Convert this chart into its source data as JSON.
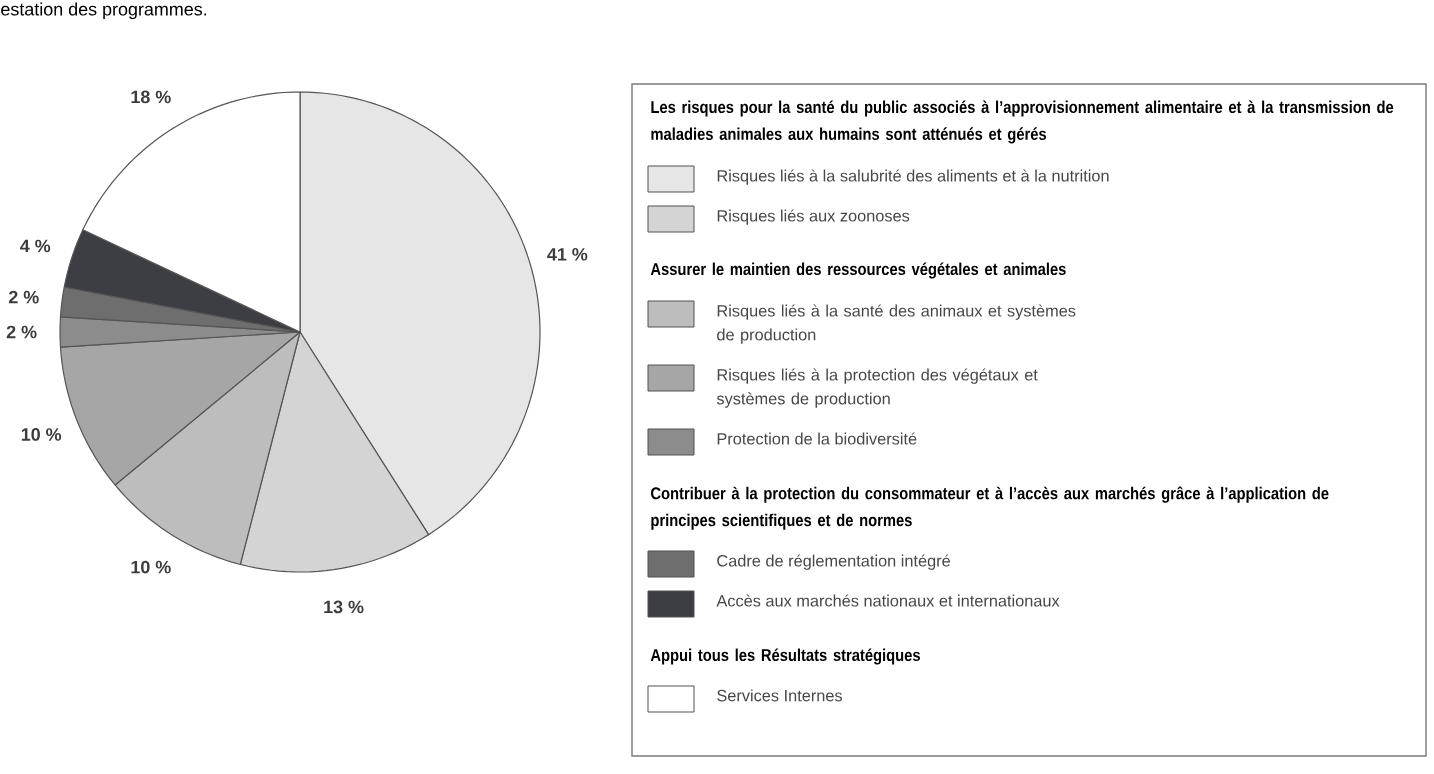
{
  "chart_data": {
    "type": "pie",
    "categories": [
      "Risques liés à la salubrité des aliments et à la nutrition",
      "Risques liés aux zoonoses",
      "Risques liés à la santé des animaux et systèmes de production",
      "Risques liés à la protection des végétaux et systèmes de production",
      "Protection de la biodiversité",
      "Cadre de réglementation intégré",
      "Accès aux marchés nationaux et internationaux",
      "Services Internes"
    ],
    "values": [
      41,
      13,
      10,
      10,
      2,
      2,
      4,
      18
    ],
    "value_labels": [
      "41 %",
      "13 %",
      "10 %",
      "10 %",
      "2 %",
      "2 %",
      "4 %",
      "18 %"
    ],
    "colors": [
      "#e6e6e6",
      "#d4d4d4",
      "#bdbdbd",
      "#a6a6a6",
      "#8c8c8c",
      "#6e6e6e",
      "#3d3e44",
      "#ffffff"
    ],
    "legend": "right",
    "annotations": [
      "estation des programmes.",
      "Les risques pour la santé du public associés à l’approvisionnement alimentaire et à la transmission de maladies animales aux humains sont atténués et gérés",
      "Assurer le maintien des ressources végétales et animales",
      "Contribuer à la protection du consommateur et à l’accès aux marchés grâce à l’application de principes scientifiques et de normes",
      "Appui tous les Résultats stratégiques"
    ]
  }
}
